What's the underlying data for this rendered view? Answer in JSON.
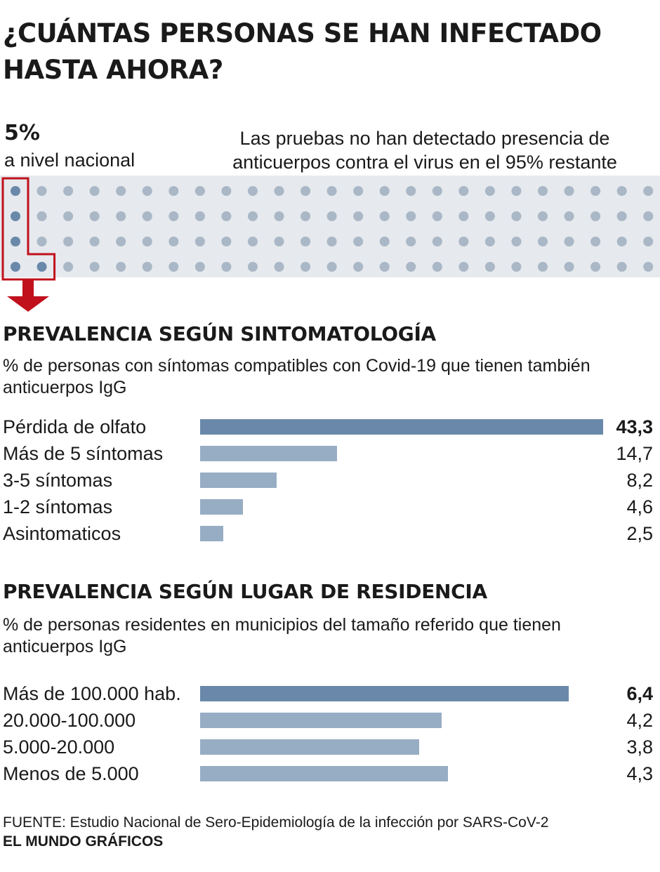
{
  "title": "¿CUÁNTAS PERSONAS SE HAN INFECTADO HASTA AHORA?",
  "headline": {
    "percent": "5%",
    "percent_label": "a nivel nacional",
    "note": "Las pruebas no han detectado presencia de anticuerpos contra el virus en el 95% restante"
  },
  "colors": {
    "background_band": "#e6e9ed",
    "dot_default": "#a9b7c6",
    "dot_highlight": "#6a89aa",
    "bar": "#97adc4",
    "bar_highlight": "#6a89aa",
    "accent": "#c0111c"
  },
  "chart_data": [
    {
      "type": "unit",
      "total_dots": 100,
      "rows": 4,
      "highlighted_dots": 5,
      "highlighted_percent": 5
    },
    {
      "type": "bar",
      "title": "PREVALENCIA SEGÚN SINTOMATOLOGÍA",
      "subtitle": "% de personas con síntomas compatibles con Covid-19 que tienen también anticuerpos IgG",
      "categories": [
        "Pérdida de olfato",
        "Más de 5 síntomas",
        "3-5 síntomas",
        "1-2 síntomas",
        "Asintomaticos"
      ],
      "values": [
        43.3,
        14.7,
        8.2,
        4.6,
        2.5
      ],
      "value_labels": [
        "43,3",
        "14,7",
        "8,2",
        "4,6",
        "2,5"
      ],
      "highlight": [
        true,
        false,
        false,
        false,
        false
      ],
      "xlim": [
        0,
        43.3
      ]
    },
    {
      "type": "bar",
      "title": "PREVALENCIA SEGÚN LUGAR DE RESIDENCIA",
      "subtitle": "% de personas residentes en municipios del tamaño referido que tienen anticuerpos IgG",
      "categories": [
        "Más de 100.000 hab.",
        "20.000-100.000",
        "5.000-20.000",
        "Menos de 5.000"
      ],
      "values": [
        6.4,
        4.2,
        3.8,
        4.3
      ],
      "value_labels": [
        "6,4",
        "4,2",
        "3,8",
        "4,3"
      ],
      "highlight": [
        true,
        false,
        false,
        false
      ],
      "xlim": [
        0,
        7
      ]
    }
  ],
  "source": "FUENTE: Estudio Nacional de Sero-Epidemiología de la infección por SARS-CoV-2",
  "credit": "EL MUNDO GRÁFICOS"
}
